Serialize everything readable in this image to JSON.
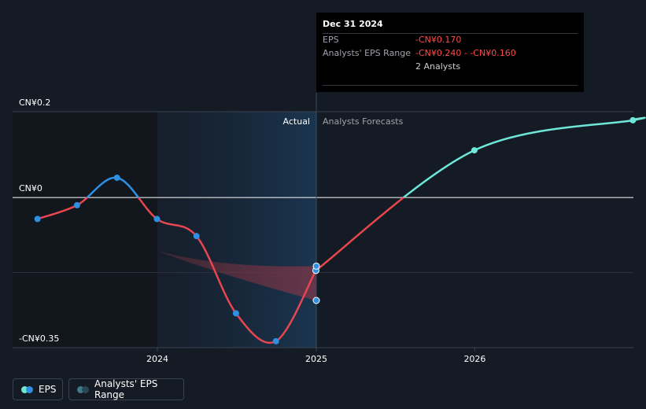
{
  "chart_data": {
    "type": "line",
    "title": "",
    "xlabel": "",
    "ylabel": "",
    "x_ticks": [
      "2024",
      "2025",
      "2026"
    ],
    "y_ticks": [
      {
        "label": "CN¥0.2",
        "value": 0.2
      },
      {
        "label": "CN¥0",
        "value": 0
      },
      {
        "label": "-CN¥0.35",
        "value": -0.35
      }
    ],
    "ylim": [
      -0.35,
      0.2
    ],
    "grid": true,
    "section_labels": {
      "actual": "Actual",
      "forecast": "Analysts Forecasts"
    },
    "series": [
      {
        "name": "EPS",
        "kind": "actual",
        "points": [
          {
            "x": "2023-03-31",
            "y": -0.05
          },
          {
            "x": "2023-06-30",
            "y": -0.018
          },
          {
            "x": "2023-09-30",
            "y": 0.046
          },
          {
            "x": "2023-12-31",
            "y": -0.05
          },
          {
            "x": "2024-03-31",
            "y": -0.09
          },
          {
            "x": "2024-06-30",
            "y": -0.27
          },
          {
            "x": "2024-09-30",
            "y": -0.335
          },
          {
            "x": "2024-12-31",
            "y": -0.17
          }
        ]
      },
      {
        "name": "EPS",
        "kind": "forecast",
        "points": [
          {
            "x": "2024-12-31",
            "y": -0.17
          },
          {
            "x": "2025-12-31",
            "y": 0.11
          },
          {
            "x": "2026-12-31",
            "y": 0.18
          }
        ]
      },
      {
        "name": "Analysts' EPS Range",
        "kind": "range",
        "points": [
          {
            "x": "2023-03-31",
            "low": -0.05,
            "high": -0.05
          },
          {
            "x": "2023-12-31",
            "low": -0.124,
            "high": -0.124
          },
          {
            "x": "2024-12-31",
            "low": -0.24,
            "high": -0.16
          }
        ]
      }
    ],
    "colors": {
      "positive": "#6ee7d8",
      "negative": "#e8464f",
      "actual_positive": "#2f8fe0",
      "point_actual": "#2f8fe0",
      "point_forecast": "#6ee7d8",
      "range_fill": "#a43846",
      "highlight": "#1a3550",
      "background": "#151b24"
    }
  },
  "tooltip": {
    "date": "Dec 31 2024",
    "rows": [
      {
        "label": "EPS",
        "value": "-CN¥0.170"
      },
      {
        "label": "Analysts' EPS Range",
        "value": "-CN¥0.240 - -CN¥0.160"
      },
      {
        "label": "",
        "value": "2 Analysts"
      }
    ]
  },
  "legend": [
    {
      "label": "EPS",
      "colors": [
        "#6ee7d8",
        "#2f8fe0"
      ]
    },
    {
      "label": "Analysts' EPS Range",
      "colors": [
        "#3f7a86",
        "#2b4654"
      ]
    }
  ]
}
